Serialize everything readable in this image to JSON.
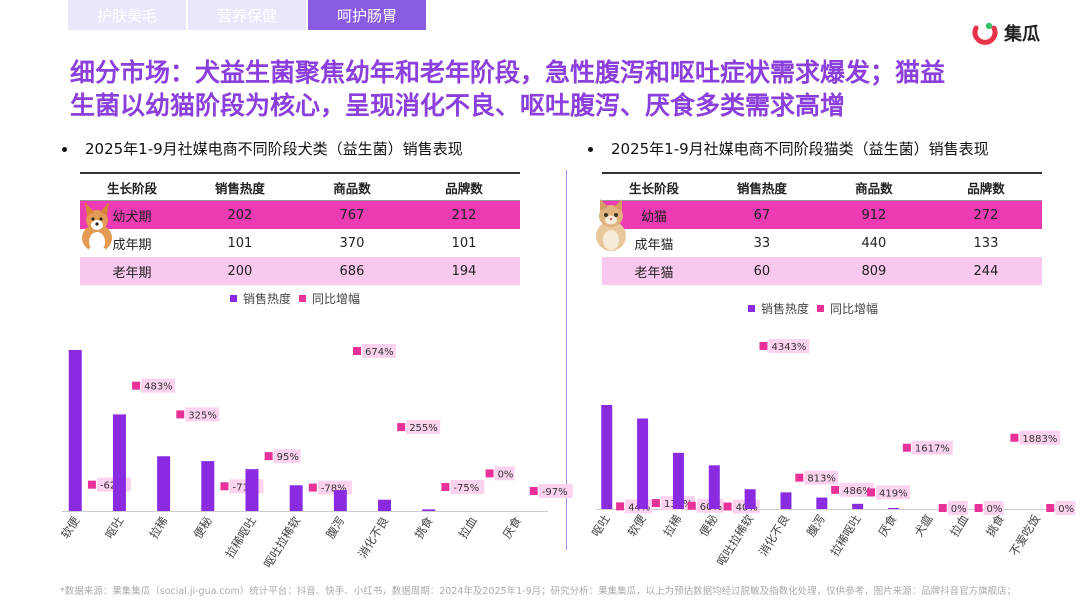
{
  "tabs": [
    "护肤美毛",
    "营养保健",
    "呵护肠胃"
  ],
  "logo": {
    "text": "集瓜"
  },
  "headline": {
    "line1": "细分市场：犬益生菌聚焦幼年和老年阶段，急性腹泻和呕吐症状需求爆发；猫益",
    "line2": "生菌以幼猫阶段为核心，呈现消化不良、呕吐腹泻、厌食多类需求高增"
  },
  "left": {
    "title": "2025年1-9月社媒电商不同阶段犬类（益生菌）销售表现",
    "table": {
      "headers": [
        "生长阶段",
        "销售热度",
        "商品数",
        "品牌数"
      ],
      "rows": [
        [
          "幼犬期",
          "202",
          "767",
          "212"
        ],
        [
          "成年期",
          "101",
          "370",
          "101"
        ],
        [
          "老年期",
          "200",
          "686",
          "194"
        ]
      ]
    },
    "pet_icon": "corgi-dog-icon"
  },
  "right": {
    "title": "2025年1-9月社媒电商不同阶段猫类（益生菌）销售表现",
    "table": {
      "headers": [
        "生长阶段",
        "销售热度",
        "商品数",
        "品牌数"
      ],
      "rows": [
        [
          "幼猫",
          "67",
          "912",
          "272"
        ],
        [
          "成年猫",
          "33",
          "440",
          "133"
        ],
        [
          "老年猫",
          "60",
          "809",
          "244"
        ]
      ]
    },
    "pet_icon": "cat-icon"
  },
  "legend": {
    "bar": "销售热度",
    "growth": "同比增幅"
  },
  "colors": {
    "bar": "#8a2be2",
    "growth": "#e8329a",
    "label_bg": "#fbd3ee",
    "title": "#8b3fdc",
    "tab_active": "#8a5be0"
  },
  "chart_data": [
    {
      "type": "bar",
      "categories": [
        "软便",
        "呕吐",
        "拉稀",
        "便秘",
        "拉稀呕吐",
        "呕吐拉稀软",
        "腹泻",
        "消化不良",
        "挑食",
        "拉血",
        "厌食"
      ],
      "series": [
        {
          "name": "销售热度",
          "type": "bar",
          "values": [
            100,
            60,
            34,
            31,
            26,
            16,
            13,
            7,
            1,
            0,
            0
          ]
        },
        {
          "name": "同比增幅",
          "type": "marker",
          "values": [
            -62,
            483,
            325,
            -71,
            95,
            -78,
            674,
            255,
            -75,
            0,
            -97
          ],
          "labels": [
            "-62%",
            "483%",
            "325%",
            "-71%",
            "95%",
            "-78%",
            "674%",
            "255%",
            "-75%",
            "0%",
            "-97%"
          ]
        }
      ],
      "grid": false,
      "legend": "top-center"
    },
    {
      "type": "bar",
      "categories": [
        "呕吐",
        "软便",
        "拉稀",
        "便秘",
        "呕吐拉稀软",
        "消化不良",
        "腹泻",
        "拉稀呕吐",
        "厌食",
        "犬瘟",
        "拉血",
        "挑食",
        "不爱吃饭"
      ],
      "series": [
        {
          "name": "销售热度",
          "type": "bar",
          "values": [
            100,
            87,
            54,
            42,
            19,
            16,
            11,
            5,
            1,
            0,
            0,
            0,
            0
          ]
        },
        {
          "name": "同比增幅",
          "type": "marker",
          "values": [
            44,
            131,
            60,
            40,
            4343,
            813,
            486,
            419,
            1617,
            0,
            0,
            1883,
            0
          ],
          "labels": [
            "44%",
            "131%",
            "60%",
            "40%",
            "4343%",
            "813%",
            "486%",
            "419%",
            "1617%",
            "0%",
            "0%",
            "1883%",
            "0%"
          ]
        }
      ],
      "grid": false,
      "legend": "top-center"
    }
  ],
  "footnote": "*数据来源：果集集瓜（social.ji-gua.com）统计平台：抖音、快手、小红书，数据周期：2024年及2025年1-9月；研究分析：果集集瓜，以上为预估数据均经过脱敏及指数化处理，仅供参考，图片来源：品牌抖音官方旗舰店；"
}
